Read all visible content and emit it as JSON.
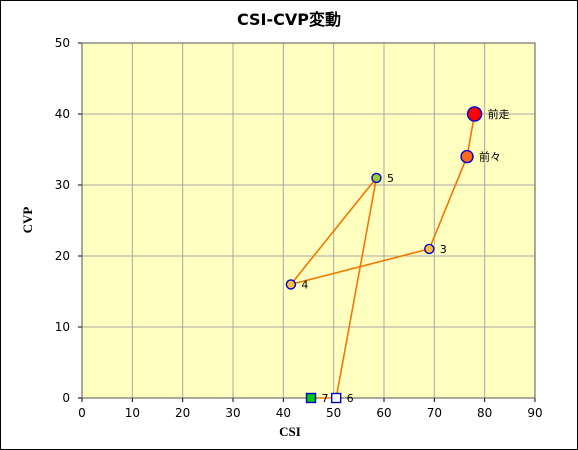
{
  "chart_data": {
    "type": "scatter",
    "title": "CSI-CVP変動",
    "xlabel": "CSI",
    "ylabel": "CVP",
    "xlim": [
      0,
      90
    ],
    "ylim": [
      0,
      50
    ],
    "x_ticks": [
      "0",
      "10",
      "20",
      "30",
      "40",
      "50",
      "60",
      "70",
      "80",
      "90"
    ],
    "y_ticks": [
      "0",
      "10",
      "20",
      "30",
      "40",
      "50"
    ],
    "grid": true,
    "plot_background": "#FFFFC0",
    "grid_color": "#A8A8A8",
    "line_color": "#F07800",
    "points": [
      {
        "label": "前走",
        "x": 78,
        "y": 40,
        "fill": "#FF0000",
        "stroke": "#0000CC",
        "marker": "circle",
        "size": "large"
      },
      {
        "label": "前々",
        "x": 76.5,
        "y": 34,
        "fill": "#FF6A1A",
        "stroke": "#0000CC",
        "marker": "circle",
        "size": "medium"
      },
      {
        "label": "3",
        "x": 69,
        "y": 21,
        "fill": "#FFC040",
        "stroke": "#0000CC",
        "marker": "circle",
        "size": "small"
      },
      {
        "label": "4",
        "x": 41.5,
        "y": 16,
        "fill": "#FFC040",
        "stroke": "#0000CC",
        "marker": "circle",
        "size": "small"
      },
      {
        "label": "5",
        "x": 58.5,
        "y": 31,
        "fill": "#9ACD32",
        "stroke": "#0000CC",
        "marker": "circle",
        "size": "small"
      },
      {
        "label": "6",
        "x": 50.5,
        "y": 0,
        "fill": "#FFFFFF",
        "stroke": "#0000CC",
        "marker": "square",
        "size": "small"
      },
      {
        "label": "7",
        "x": 45.5,
        "y": 0,
        "fill": "#00CC00",
        "stroke": "#0000CC",
        "marker": "square",
        "size": "small"
      }
    ]
  }
}
